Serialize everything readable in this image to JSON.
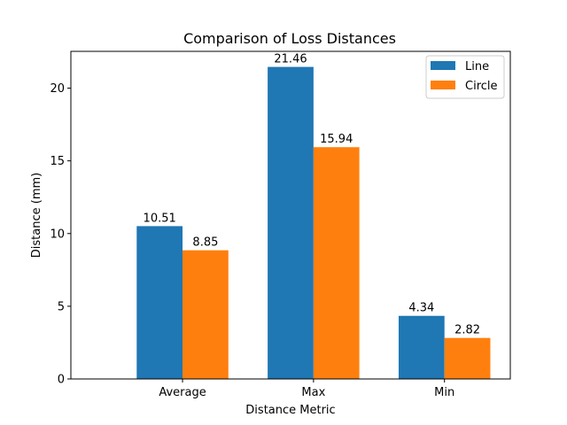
{
  "chart_data": {
    "type": "bar",
    "title": "Comparison of Loss Distances",
    "xlabel": "Distance Metric",
    "ylabel": "Distance (mm)",
    "categories": [
      "Average",
      "Max",
      "Min"
    ],
    "series": [
      {
        "name": "Line",
        "values": [
          10.51,
          21.46,
          4.34
        ],
        "color": "#1f77b4"
      },
      {
        "name": "Circle",
        "values": [
          8.85,
          15.94,
          2.82
        ],
        "color": "#ff7f0e"
      }
    ],
    "ylim": [
      0,
      22.53
    ],
    "yticks": [
      0,
      5,
      10,
      15,
      20
    ],
    "data_labels": true,
    "grid": false,
    "legend_position": "top-right"
  }
}
